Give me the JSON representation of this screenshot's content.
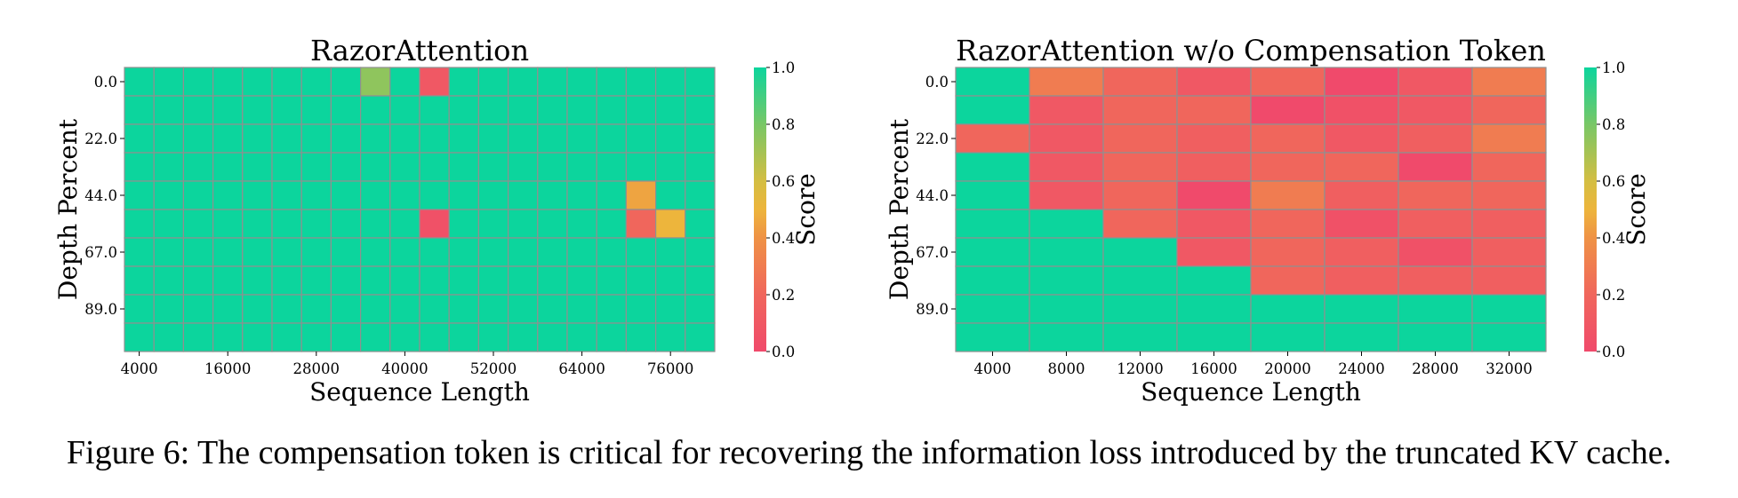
{
  "caption": "Figure 6: The compensation token is critical for recovering the information loss introduced by the truncated KV cache.",
  "colors": {
    "low": "#f04a6b",
    "mid": "#efb43c",
    "high": "#0cd59d",
    "grid": "#909090"
  },
  "chart_data": [
    {
      "type": "heatmap",
      "title": "RazorAttention",
      "xlabel": "Sequence Length",
      "ylabel": "Depth Percent",
      "colorbar_label": "Score",
      "colorbar_ticks": [
        "0.0",
        "0.2",
        "0.4",
        "0.6",
        "0.8",
        "1.0"
      ],
      "clim": [
        0,
        1
      ],
      "n_cols": 20,
      "n_rows": 10,
      "x_tick_labels": [
        "4000",
        "16000",
        "28000",
        "40000",
        "52000",
        "64000",
        "76000"
      ],
      "x_tick_positions": [
        0,
        3,
        6,
        9,
        12,
        15,
        18
      ],
      "y_tick_labels": [
        "0.0",
        "22.0",
        "44.0",
        "67.0",
        "89.0"
      ],
      "y_tick_positions": [
        0,
        2,
        4,
        6,
        8
      ],
      "values": [
        [
          1,
          1,
          1,
          1,
          1,
          1,
          1,
          1,
          0.75,
          1,
          0.1,
          1,
          1,
          1,
          1,
          1,
          1,
          1,
          1,
          1
        ],
        [
          1,
          1,
          1,
          1,
          1,
          1,
          1,
          1,
          1,
          1,
          1,
          1,
          1,
          1,
          1,
          1,
          1,
          1,
          1,
          1
        ],
        [
          1,
          1,
          1,
          1,
          1,
          1,
          1,
          1,
          1,
          1,
          1,
          1,
          1,
          1,
          1,
          1,
          1,
          1,
          1,
          1
        ],
        [
          1,
          1,
          1,
          1,
          1,
          1,
          1,
          1,
          1,
          1,
          1,
          1,
          1,
          1,
          1,
          1,
          1,
          1,
          1,
          1
        ],
        [
          1,
          1,
          1,
          1,
          1,
          1,
          1,
          1,
          1,
          1,
          1,
          1,
          1,
          1,
          1,
          1,
          1,
          0.45,
          1,
          1
        ],
        [
          1,
          1,
          1,
          1,
          1,
          1,
          1,
          1,
          1,
          1,
          0.05,
          1,
          1,
          1,
          1,
          1,
          1,
          0.2,
          0.5,
          1
        ],
        [
          1,
          1,
          1,
          1,
          1,
          1,
          1,
          1,
          1,
          1,
          1,
          1,
          1,
          1,
          1,
          1,
          1,
          1,
          1,
          1
        ],
        [
          1,
          1,
          1,
          1,
          1,
          1,
          1,
          1,
          1,
          1,
          1,
          1,
          1,
          1,
          1,
          1,
          1,
          1,
          1,
          1
        ],
        [
          1,
          1,
          1,
          1,
          1,
          1,
          1,
          1,
          1,
          1,
          1,
          1,
          1,
          1,
          1,
          1,
          1,
          1,
          1,
          1
        ],
        [
          1,
          1,
          1,
          1,
          1,
          1,
          1,
          1,
          1,
          1,
          1,
          1,
          1,
          1,
          1,
          1,
          1,
          1,
          1,
          1
        ]
      ]
    },
    {
      "type": "heatmap",
      "title": "RazorAttention w/o Compensation Token",
      "xlabel": "Sequence Length",
      "ylabel": "Depth Percent",
      "colorbar_label": "Score",
      "colorbar_ticks": [
        "0.0",
        "0.2",
        "0.4",
        "0.6",
        "0.8",
        "1.0"
      ],
      "clim": [
        0,
        1
      ],
      "n_cols": 8,
      "n_rows": 10,
      "x_tick_labels": [
        "4000",
        "8000",
        "12000",
        "16000",
        "20000",
        "24000",
        "28000",
        "32000"
      ],
      "x_tick_positions": [
        0,
        1,
        2,
        3,
        4,
        5,
        6,
        7
      ],
      "y_tick_labels": [
        "0.0",
        "22.0",
        "44.0",
        "67.0",
        "89.0"
      ],
      "y_tick_positions": [
        0,
        2,
        4,
        6,
        8
      ],
      "values": [
        [
          1,
          0.3,
          0.2,
          0.1,
          0.2,
          0.0,
          0.1,
          0.3
        ],
        [
          1,
          0.1,
          0.2,
          0.2,
          0.0,
          0.05,
          0.1,
          0.2
        ],
        [
          0.2,
          0.1,
          0.2,
          0.15,
          0.2,
          0.1,
          0.15,
          0.3
        ],
        [
          1,
          0.1,
          0.2,
          0.15,
          0.2,
          0.2,
          0.0,
          0.2
        ],
        [
          1,
          0.1,
          0.2,
          0.0,
          0.3,
          0.15,
          0.2,
          0.2
        ],
        [
          1,
          1,
          0.2,
          0.1,
          0.2,
          0.05,
          0.15,
          0.15
        ],
        [
          1,
          1,
          1,
          0.1,
          0.2,
          0.15,
          0.05,
          0.15
        ],
        [
          1,
          1,
          1,
          1,
          0.2,
          0.15,
          0.15,
          0.15
        ],
        [
          1,
          1,
          1,
          1,
          1,
          1,
          1,
          1
        ],
        [
          1,
          1,
          1,
          1,
          1,
          1,
          1,
          1
        ]
      ]
    }
  ]
}
